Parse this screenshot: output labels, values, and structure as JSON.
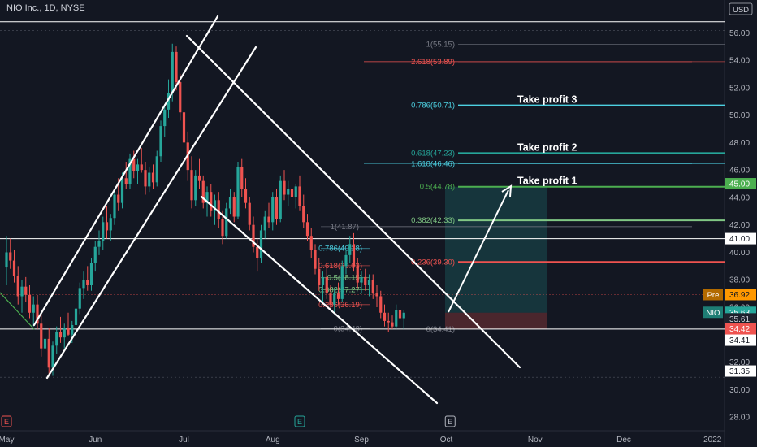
{
  "header": {
    "symbol_line": "NIO Inc., 1D, NYSE"
  },
  "currency": "USD",
  "colors": {
    "background": "#131722",
    "up": "#26a69a",
    "down": "#ef5350",
    "axis_text": "#b2b5be",
    "white": "#ffffff"
  },
  "chart_data": {
    "type": "candlestick",
    "ylim": [
      27.0,
      57.2
    ],
    "yticks": [
      28,
      30,
      32,
      34,
      36,
      38,
      40,
      42,
      44,
      46,
      48,
      50,
      52,
      54,
      56
    ],
    "ytick_labels": [
      "28.00",
      "30.00",
      "32.00",
      "34.00",
      "36.00",
      "38.00",
      "40.00",
      "42.00",
      "44.00",
      "46.00",
      "48.00",
      "50.00",
      "52.00",
      "54.00",
      "56.00"
    ],
    "x_labels": [
      "May",
      "Jun",
      "Jul",
      "Aug",
      "Sep",
      "Oct",
      "Nov",
      "Dec",
      "2022"
    ],
    "x_label_bars": [
      0,
      23,
      46,
      69,
      92,
      114,
      137,
      160,
      183
    ],
    "candles": [
      [
        38.9,
        41.2,
        37.6,
        40.0
      ],
      [
        40.0,
        41.0,
        38.8,
        39.4
      ],
      [
        39.4,
        40.2,
        37.8,
        38.3
      ],
      [
        38.3,
        39.0,
        36.2,
        36.8
      ],
      [
        36.8,
        38.0,
        35.6,
        37.5
      ],
      [
        37.5,
        38.2,
        36.4,
        36.9
      ],
      [
        36.9,
        37.6,
        35.2,
        35.6
      ],
      [
        35.6,
        36.8,
        34.6,
        36.2
      ],
      [
        36.2,
        36.9,
        34.4,
        34.8
      ],
      [
        34.8,
        35.5,
        32.4,
        33.0
      ],
      [
        33.0,
        34.2,
        31.8,
        33.7
      ],
      [
        33.7,
        34.5,
        31.0,
        31.6
      ],
      [
        31.6,
        33.5,
        31.0,
        33.2
      ],
      [
        33.2,
        34.6,
        32.6,
        34.2
      ],
      [
        34.2,
        35.3,
        33.4,
        33.8
      ],
      [
        33.8,
        34.8,
        33.0,
        34.5
      ],
      [
        34.5,
        35.6,
        33.9,
        34.0
      ],
      [
        34.0,
        35.0,
        33.4,
        34.7
      ],
      [
        34.7,
        36.2,
        34.4,
        35.9
      ],
      [
        35.9,
        37.8,
        35.5,
        37.4
      ],
      [
        37.4,
        38.6,
        36.6,
        38.0
      ],
      [
        38.0,
        39.0,
        37.2,
        37.6
      ],
      [
        37.6,
        39.6,
        37.2,
        39.2
      ],
      [
        39.2,
        40.8,
        38.6,
        40.4
      ],
      [
        40.4,
        41.6,
        39.8,
        40.8
      ],
      [
        40.8,
        42.6,
        40.2,
        42.2
      ],
      [
        42.2,
        43.4,
        41.0,
        41.6
      ],
      [
        41.6,
        42.8,
        40.8,
        42.5
      ],
      [
        42.5,
        44.6,
        42.0,
        44.2
      ],
      [
        44.2,
        45.4,
        43.0,
        43.6
      ],
      [
        43.6,
        45.8,
        43.2,
        45.4
      ],
      [
        45.4,
        46.6,
        44.6,
        45.0
      ],
      [
        45.0,
        47.2,
        44.6,
        46.8
      ],
      [
        46.8,
        47.4,
        45.4,
        45.9
      ],
      [
        45.9,
        46.8,
        45.0,
        46.4
      ],
      [
        46.4,
        47.6,
        45.8,
        46.0
      ],
      [
        46.0,
        46.6,
        44.2,
        44.8
      ],
      [
        44.8,
        46.2,
        44.4,
        45.8
      ],
      [
        45.8,
        46.4,
        44.6,
        45.1
      ],
      [
        45.1,
        47.4,
        44.8,
        47.0
      ],
      [
        47.0,
        49.6,
        46.6,
        49.2
      ],
      [
        49.2,
        50.8,
        48.4,
        50.4
      ],
      [
        50.4,
        52.6,
        49.8,
        51.6
      ],
      [
        51.6,
        55.2,
        51.0,
        54.6
      ],
      [
        54.6,
        55.0,
        51.8,
        52.4
      ],
      [
        52.4,
        53.0,
        49.6,
        50.2
      ],
      [
        50.2,
        51.6,
        47.4,
        48.0
      ],
      [
        48.0,
        48.8,
        45.2,
        46.0
      ],
      [
        46.0,
        47.0,
        43.2,
        43.8
      ],
      [
        43.8,
        46.0,
        43.4,
        45.6
      ],
      [
        45.6,
        46.8,
        44.6,
        45.2
      ],
      [
        45.2,
        45.6,
        43.2,
        43.6
      ],
      [
        43.6,
        44.8,
        42.6,
        44.4
      ],
      [
        44.4,
        45.0,
        42.6,
        43.0
      ],
      [
        43.0,
        44.2,
        42.0,
        43.8
      ],
      [
        43.8,
        44.4,
        41.8,
        42.4
      ],
      [
        42.4,
        43.0,
        40.6,
        41.2
      ],
      [
        41.2,
        43.6,
        41.0,
        43.2
      ],
      [
        43.2,
        44.6,
        42.8,
        44.0
      ],
      [
        44.0,
        44.4,
        42.2,
        42.6
      ],
      [
        42.6,
        46.6,
        42.4,
        46.2
      ],
      [
        46.2,
        46.8,
        44.0,
        44.6
      ],
      [
        44.6,
        45.4,
        43.2,
        43.6
      ],
      [
        43.6,
        44.0,
        41.6,
        42.0
      ],
      [
        42.0,
        42.6,
        40.0,
        40.4
      ],
      [
        40.4,
        41.0,
        38.6,
        39.6
      ],
      [
        39.6,
        42.0,
        39.2,
        41.6
      ],
      [
        41.6,
        43.0,
        41.0,
        42.6
      ],
      [
        42.6,
        43.6,
        41.8,
        42.2
      ],
      [
        42.2,
        44.4,
        41.6,
        44.0
      ],
      [
        44.0,
        44.6,
        42.0,
        42.4
      ],
      [
        42.4,
        45.6,
        42.2,
        45.2
      ],
      [
        45.2,
        46.0,
        43.8,
        44.2
      ],
      [
        44.2,
        45.2,
        43.4,
        44.6
      ],
      [
        44.6,
        45.4,
        43.8,
        44.0
      ],
      [
        44.0,
        45.0,
        43.2,
        44.8
      ],
      [
        44.8,
        45.6,
        43.0,
        43.4
      ],
      [
        43.4,
        44.2,
        41.8,
        42.2
      ],
      [
        42.2,
        42.8,
        40.8,
        41.2
      ],
      [
        41.2,
        41.8,
        39.6,
        40.2
      ],
      [
        40.2,
        40.6,
        38.4,
        38.8
      ],
      [
        38.8,
        39.6,
        37.2,
        37.6
      ],
      [
        37.6,
        38.6,
        36.4,
        38.2
      ],
      [
        38.2,
        39.0,
        36.6,
        37.0
      ],
      [
        37.0,
        37.6,
        35.8,
        36.2
      ],
      [
        36.2,
        37.4,
        35.6,
        37.0
      ],
      [
        37.0,
        37.8,
        36.2,
        36.6
      ],
      [
        36.6,
        39.4,
        36.4,
        39.0
      ],
      [
        39.0,
        40.2,
        38.4,
        39.8
      ],
      [
        39.8,
        41.2,
        39.2,
        40.6
      ],
      [
        40.6,
        41.4,
        38.6,
        39.0
      ],
      [
        39.0,
        39.6,
        37.4,
        37.8
      ],
      [
        37.8,
        38.6,
        37.0,
        38.2
      ],
      [
        38.2,
        38.8,
        37.2,
        37.6
      ],
      [
        37.6,
        38.4,
        36.8,
        38.0
      ],
      [
        38.0,
        38.4,
        36.6,
        37.0
      ],
      [
        37.0,
        37.6,
        36.0,
        36.8
      ],
      [
        36.8,
        37.2,
        35.2,
        35.6
      ],
      [
        35.6,
        36.2,
        34.6,
        35.0
      ],
      [
        35.0,
        35.6,
        34.2,
        34.9
      ],
      [
        34.9,
        35.4,
        34.4,
        34.6
      ],
      [
        34.6,
        36.2,
        34.4,
        35.8
      ],
      [
        35.8,
        36.6,
        35.0,
        35.2
      ],
      [
        35.2,
        35.8,
        34.4,
        35.6
      ]
    ],
    "horizontal_levels": [
      {
        "price": 56.8,
        "color": "#ffffff"
      },
      {
        "price": 41.0,
        "color": "#ffffff"
      },
      {
        "price": 34.41,
        "color": "#ffffff"
      },
      {
        "price": 31.35,
        "color": "#ffffff"
      }
    ],
    "price_tags": [
      {
        "label": "45.00",
        "price": 45.0,
        "bg": "#4caf50",
        "fg": "#ffffff"
      },
      {
        "label": "41.00",
        "price": 41.0,
        "bg": "#ffffff",
        "fg": "#131722"
      },
      {
        "label": "36.92",
        "price": 36.92,
        "bg": "#ff9800",
        "fg": "#131722",
        "prefix": "Pre",
        "prefix_bg": "#b26a00"
      },
      {
        "label": "35.63",
        "price": 35.63,
        "bg": "#26a69a",
        "fg": "#ffffff",
        "prefix": "NIO",
        "prefix_bg": "#1e7d74"
      },
      {
        "label": "35.61",
        "price": 35.15,
        "bg": "#1e222d",
        "fg": "#d1d4dc"
      },
      {
        "label": "34.42",
        "price": 34.42,
        "bg": "#ef5350",
        "fg": "#ffffff"
      },
      {
        "label": "34.41",
        "price": 33.6,
        "bg": "#ffffff",
        "fg": "#131722"
      },
      {
        "label": "31.35",
        "price": 31.35,
        "bg": "#ffffff",
        "fg": "#131722"
      }
    ],
    "fib_set_1": [
      {
        "label": "1(41.87)",
        "price": 41.87,
        "color": "#787b86"
      },
      {
        "label": "0.786(40.28)",
        "price": 40.28,
        "color": "#4dd0e1"
      },
      {
        "label": "0.618(39.03)",
        "price": 39.03,
        "color": "#ef5350"
      },
      {
        "label": "0.5(38.15)",
        "price": 38.15,
        "color": "#81c784"
      },
      {
        "label": "0.382(37.27)",
        "price": 37.27,
        "color": "#81c784"
      },
      {
        "label": "0.236(36.19)",
        "price": 36.19,
        "color": "#ef5350"
      },
      {
        "label": "0(34.43)",
        "price": 34.43,
        "color": "#787b86"
      }
    ],
    "fib_set_2": [
      {
        "label": "1(55.15)",
        "price": 55.15,
        "color": "#787b86"
      },
      {
        "label": "2.618(53.89)",
        "price": 53.89,
        "color": "#ef5350"
      },
      {
        "label": "0.786(50.71)",
        "price": 50.71,
        "color": "#4dd0e1"
      },
      {
        "label": "0.618(47.23)",
        "price": 47.23,
        "color": "#26a69a"
      },
      {
        "label": "1.618(46.46)",
        "price": 46.46,
        "color": "#4dd0e1"
      },
      {
        "label": "0.5(44.78)",
        "price": 44.78,
        "color": "#4caf50"
      },
      {
        "label": "0.382(42.33)",
        "price": 42.33,
        "color": "#81c784"
      },
      {
        "label": "0.236(39.30)",
        "price": 39.3,
        "color": "#ef5350"
      },
      {
        "label": "0(34.41)",
        "price": 34.41,
        "color": "#787b86"
      }
    ],
    "annotations": [
      "Take profit 3",
      "Take profit 2",
      "Take profit 1"
    ],
    "event_markers": [
      "E",
      "E",
      "E"
    ]
  }
}
